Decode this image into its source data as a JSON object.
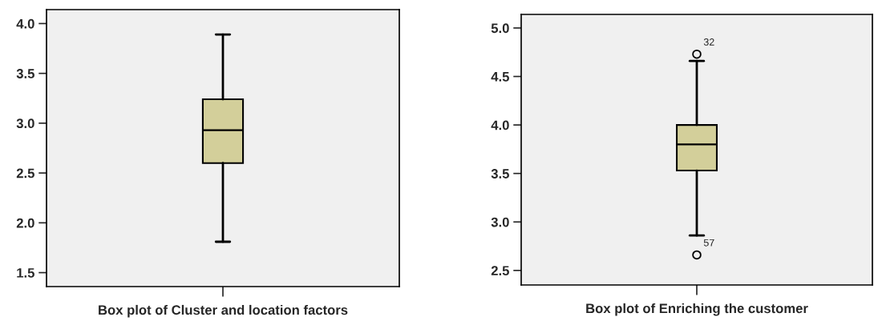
{
  "chart_data": [
    {
      "type": "box",
      "xlabel": "Box plot of Cluster and location factors",
      "categories": [
        null
      ],
      "color": "#d3cf9a",
      "boxes": [
        {
          "low": 1.81,
          "q1": 2.6,
          "median": 2.93,
          "q3": 3.24,
          "high": 3.89
        }
      ],
      "ylim": [
        1.36,
        4.14
      ],
      "yticks": [
        {
          "value": 1.5,
          "label": "1.5"
        },
        {
          "value": 2.0,
          "label": "2.0"
        },
        {
          "value": 2.5,
          "label": "2.5"
        },
        {
          "value": 3.0,
          "label": "3.0"
        },
        {
          "value": 3.5,
          "label": "3.5"
        },
        {
          "value": 4.0,
          "label": "4.0"
        }
      ],
      "grid": false
    },
    {
      "type": "box",
      "xlabel": "Box plot of Enriching the customer",
      "categories": [
        null
      ],
      "color": "#d3cf9a",
      "boxes": [
        {
          "low": 2.86,
          "q1": 3.53,
          "median": 3.8,
          "q3": 4.0,
          "high": 4.66,
          "outliers": [
            4.73,
            2.66
          ]
        }
      ],
      "ylim": [
        2.35,
        5.14
      ],
      "yticks": [
        {
          "value": 2.5,
          "label": "2.5"
        },
        {
          "value": 3.0,
          "label": "3.0"
        },
        {
          "value": 3.5,
          "label": "3.5"
        },
        {
          "value": 4.0,
          "label": "4.0"
        },
        {
          "value": 4.5,
          "label": "4.5"
        },
        {
          "value": 5.0,
          "label": "5.0"
        }
      ],
      "annotations": [
        "32",
        "57"
      ],
      "grid": false
    }
  ]
}
